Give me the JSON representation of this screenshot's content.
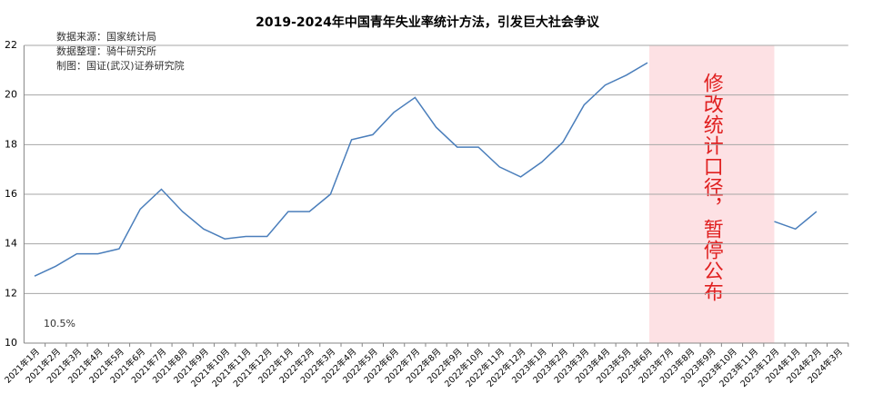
{
  "chart_data": {
    "type": "line",
    "title": "2019-2024年中国青年失业率统计方法，引发巨大社会争议",
    "notes": [
      "数据来源：国家统计局",
      "数据整理：骑牛研究所",
      "制图：国证(武汉)证券研究院"
    ],
    "annotation": "10.5%",
    "categories": [
      "2021年1月",
      "2021年2月",
      "2021年3月",
      "2021年4月",
      "2021年5月",
      "2021年6月",
      "2021年7月",
      "2021年8月",
      "2021年9月",
      "2021年10月",
      "2021年11月",
      "2021年12月",
      "2022年1月",
      "2022年2月",
      "2022年3月",
      "2022年4月",
      "2022年5月",
      "2022年6月",
      "2022年7月",
      "2022年8月",
      "2022年9月",
      "2022年10月",
      "2022年11月",
      "2022年12月",
      "2023年1月",
      "2023年2月",
      "2023年3月",
      "2023年4月",
      "2023年5月",
      "2023年6月",
      "2023年7月",
      "2023年8月",
      "2023年9月",
      "2023年10月",
      "2023年11月",
      "2023年12月",
      "2024年1月",
      "2024年2月",
      "2024年3月"
    ],
    "series": [
      {
        "name": "青年失业率",
        "color": "#4a7ebb",
        "values": [
          12.7,
          13.1,
          13.6,
          13.6,
          13.8,
          15.4,
          16.2,
          15.3,
          14.6,
          14.2,
          14.3,
          14.3,
          15.3,
          15.3,
          16.0,
          18.2,
          18.4,
          19.3,
          19.9,
          18.7,
          17.9,
          17.9,
          17.1,
          16.7,
          17.3,
          18.1,
          19.6,
          20.4,
          20.8,
          21.3,
          null,
          null,
          null,
          null,
          null,
          14.9,
          14.6,
          15.3,
          null
        ]
      }
    ],
    "shade": {
      "from": "2023年6月",
      "to": "2023年12月",
      "label": "修改统计口径，暂停公布",
      "color": "#fde1e4"
    },
    "ylim": [
      10,
      22
    ],
    "yticks": [
      10,
      12,
      14,
      16,
      18,
      20,
      22
    ],
    "grid": true
  }
}
